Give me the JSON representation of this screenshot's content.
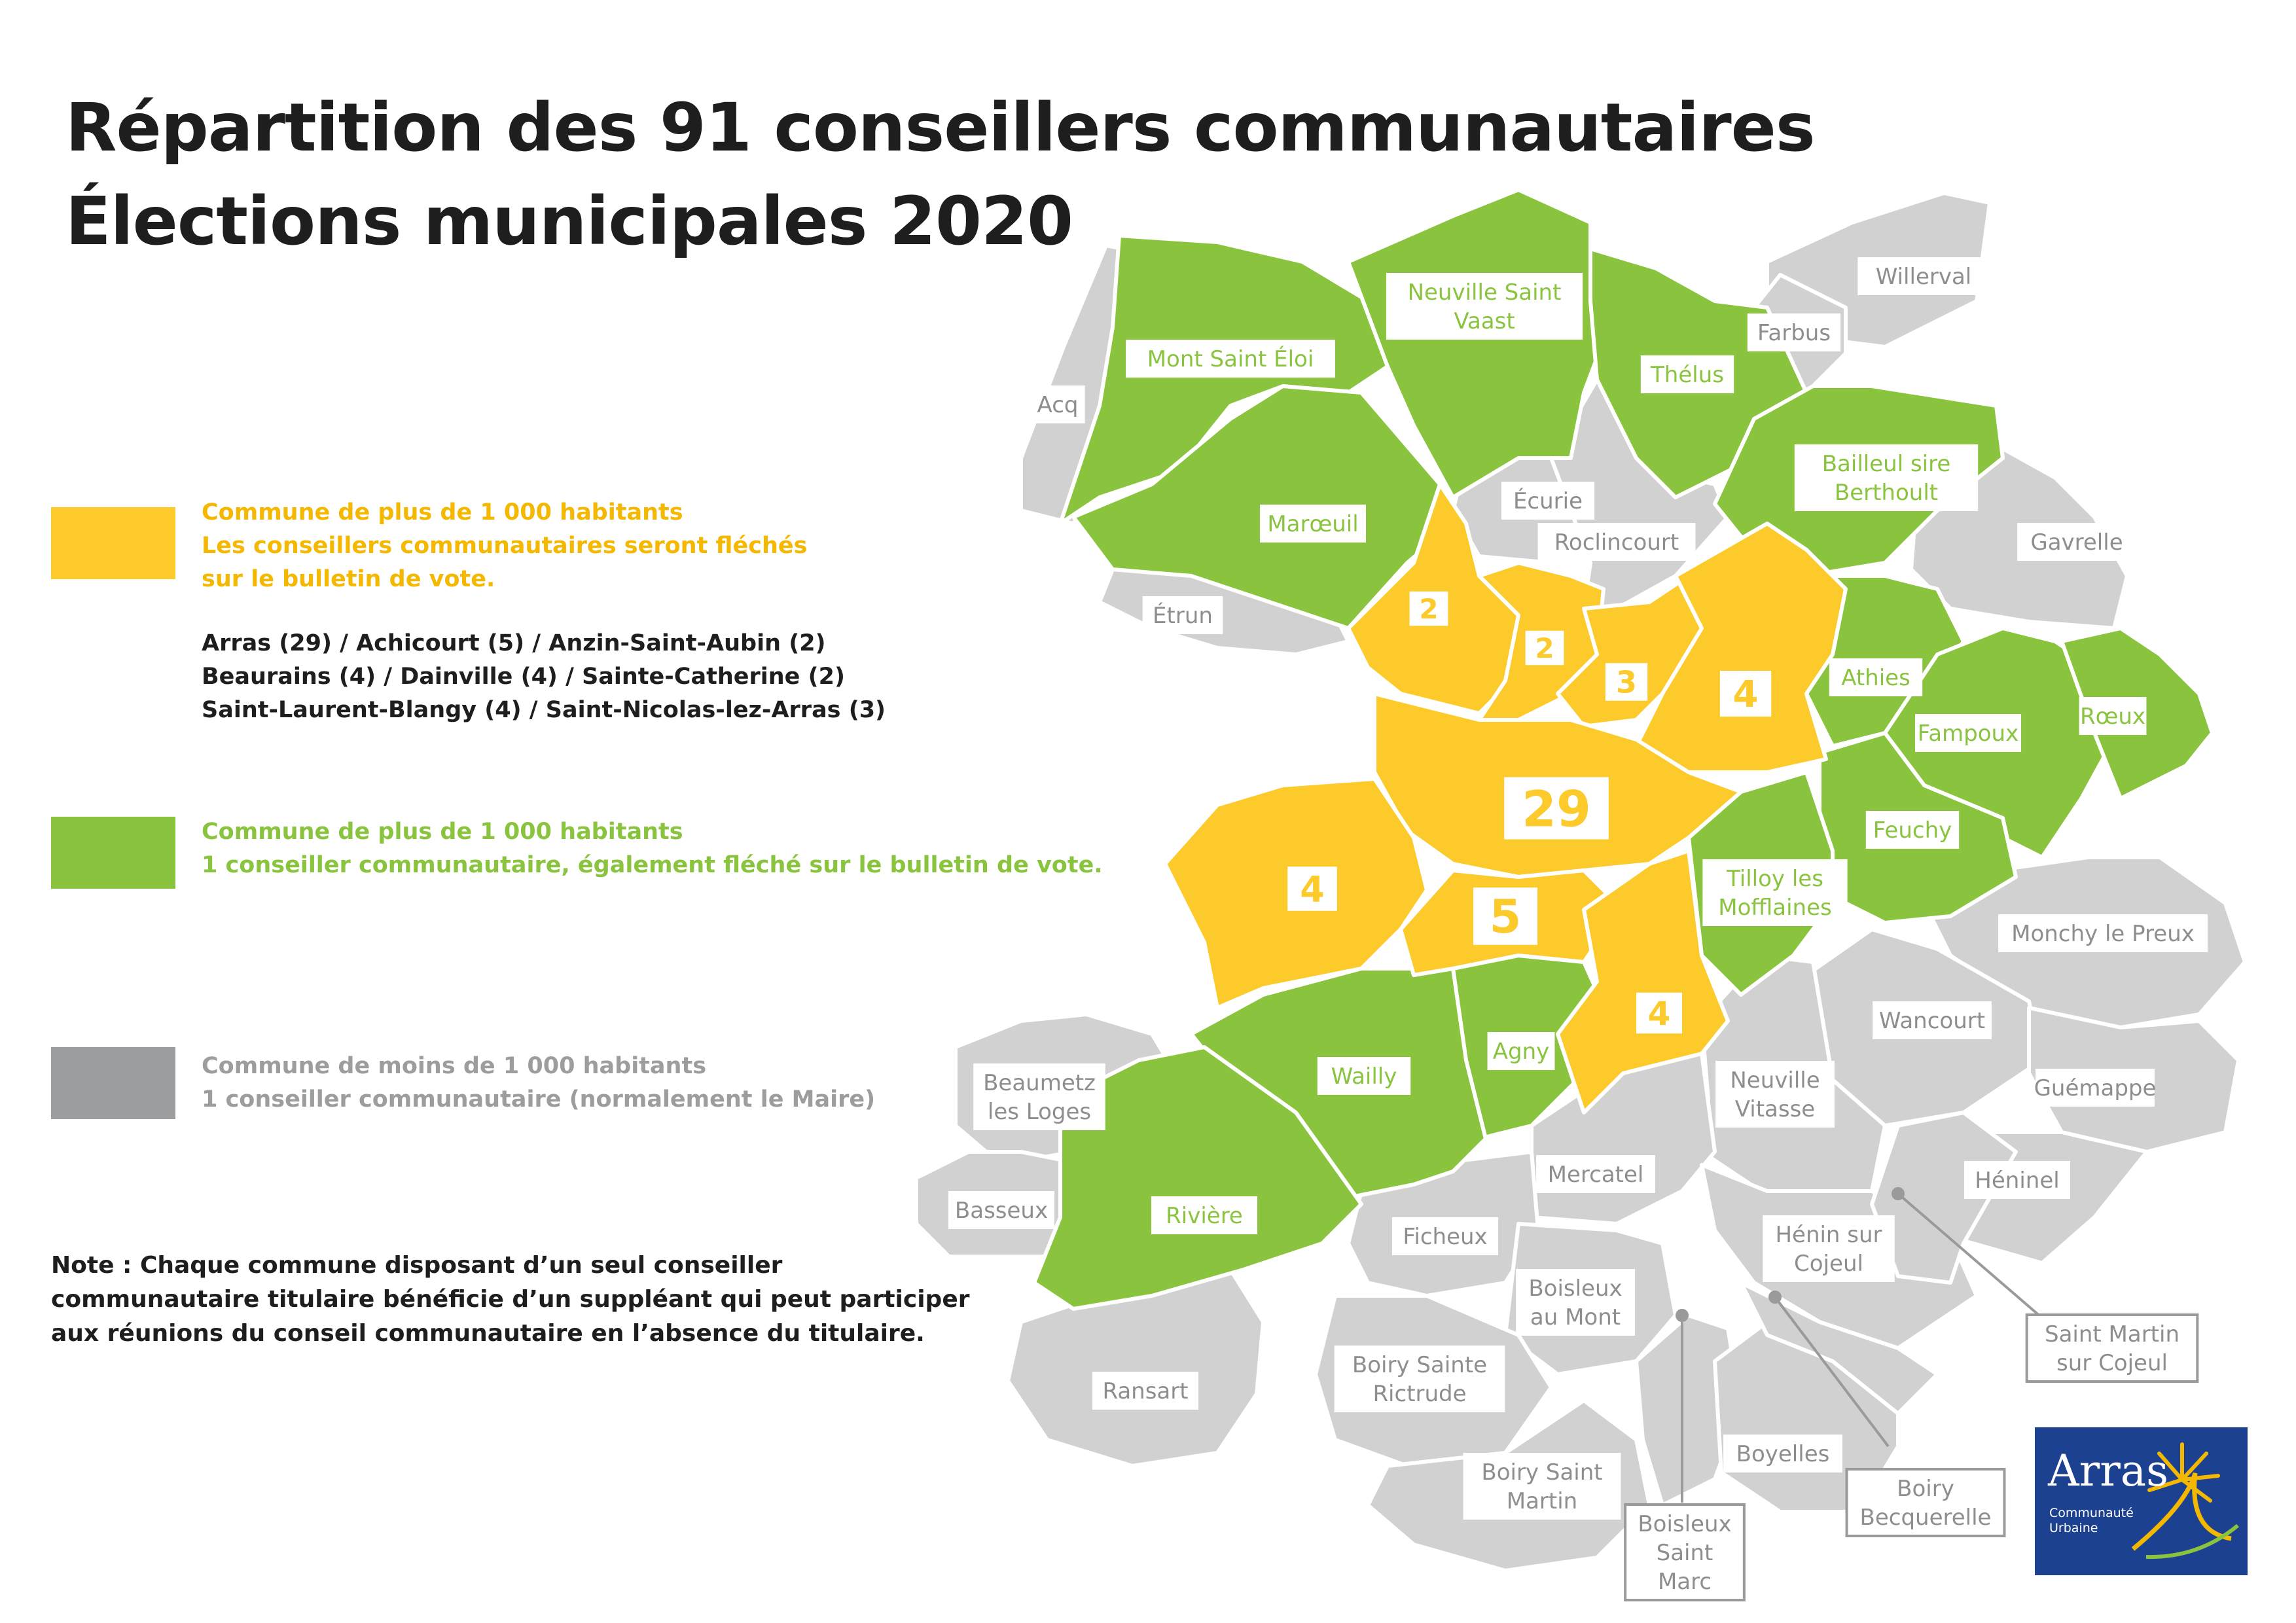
{
  "title": {
    "line1": "Répartition des 91 conseillers communautaires",
    "line2": "Élections municipales 2020"
  },
  "colors": {
    "yellow": "#fcca2a",
    "green": "#8ac43f",
    "grey": "#d1d1d1",
    "legend_grey": "#9b9d9e",
    "label_green": "#8ac43f",
    "label_grey": "#8e8e8e",
    "dark": "#1e1e1e",
    "logo_blue": "#1d4191"
  },
  "legend": {
    "yellow": {
      "line1": "Commune de plus de 1 000 habitants",
      "line2": "Les conseillers communautaires seront fléchés",
      "line3": "sur le bulletin de vote.",
      "list": [
        "Arras (29) / Achicourt (5) / Anzin-Saint-Aubin (2)",
        "Beaurains (4) / Dainville (4) / Sainte-Catherine (2)",
        "Saint-Laurent-Blangy (4) / Saint-Nicolas-lez-Arras (3)"
      ]
    },
    "green": {
      "line1": "Commune de plus de 1 000 habitants",
      "line2": "1 conseiller communautaire, également fléché sur le bulletin de vote."
    },
    "grey": {
      "line1": "Commune de moins de 1 000 habitants",
      "line2": "1 conseiller communautaire (normalement le Maire)"
    }
  },
  "note": [
    "Note : Chaque commune disposant d’un seul conseiller",
    "communautaire titulaire bénéficie d’un suppléant qui peut participer",
    "aux réunions du conseil communautaire en l’absence du titulaire."
  ],
  "seat_numbers": [
    {
      "commune": "Arras",
      "seats": "29"
    },
    {
      "commune": "Achicourt",
      "seats": "5"
    },
    {
      "commune": "Anzin-Saint-Aubin",
      "seats": "2"
    },
    {
      "commune": "Sainte-Catherine",
      "seats": "2"
    },
    {
      "commune": "Saint-Nicolas-lez-Arras",
      "seats": "3"
    },
    {
      "commune": "Saint-Laurent-Blangy",
      "seats": "4"
    },
    {
      "commune": "Dainville",
      "seats": "4"
    },
    {
      "commune": "Beaurains",
      "seats": "4"
    }
  ],
  "green_communes": [
    [
      "Mont Saint Éloi"
    ],
    [
      "Neuville Saint",
      "Vaast"
    ],
    [
      "Thélus"
    ],
    [
      "Bailleul sire",
      "Berthoult"
    ],
    [
      "Marœuil"
    ],
    [
      "Athies"
    ],
    [
      "Fampoux"
    ],
    [
      "Rœux"
    ],
    [
      "Feuchy"
    ],
    [
      "Tilloy les",
      "Mofflaines"
    ],
    [
      "Agny"
    ],
    [
      "Wailly"
    ],
    [
      "Rivière"
    ]
  ],
  "grey_communes": [
    [
      "Willerval"
    ],
    [
      "Farbus"
    ],
    [
      "Acq"
    ],
    [
      "Écurie"
    ],
    [
      "Roclincourt"
    ],
    [
      "Étrun"
    ],
    [
      "Gavrelle"
    ],
    [
      "Monchy le Preux"
    ],
    [
      "Wancourt"
    ],
    [
      "Guémappe"
    ],
    [
      "Héninel"
    ],
    [
      "Neuville",
      "Vitasse"
    ],
    [
      "Mercatel"
    ],
    [
      "Hénin sur",
      "Cojeul"
    ],
    [
      "Ficheux"
    ],
    [
      "Boisleux",
      "au Mont"
    ],
    [
      "Beaumetz",
      "les Loges"
    ],
    [
      "Basseux"
    ],
    [
      "Ransart"
    ],
    [
      "Boiry Sainte",
      "Rictrude"
    ],
    [
      "Boiry Saint",
      "Martin"
    ],
    [
      "Boyelles"
    ]
  ],
  "callout_communes": [
    [
      "Saint Martin",
      "sur Cojeul"
    ],
    [
      "Boiry",
      "Becquerelle"
    ],
    [
      "Boisleux",
      "Saint",
      "Marc"
    ]
  ],
  "logo": {
    "word": "Arras",
    "sub1": "Communauté",
    "sub2": "Urbaine"
  }
}
